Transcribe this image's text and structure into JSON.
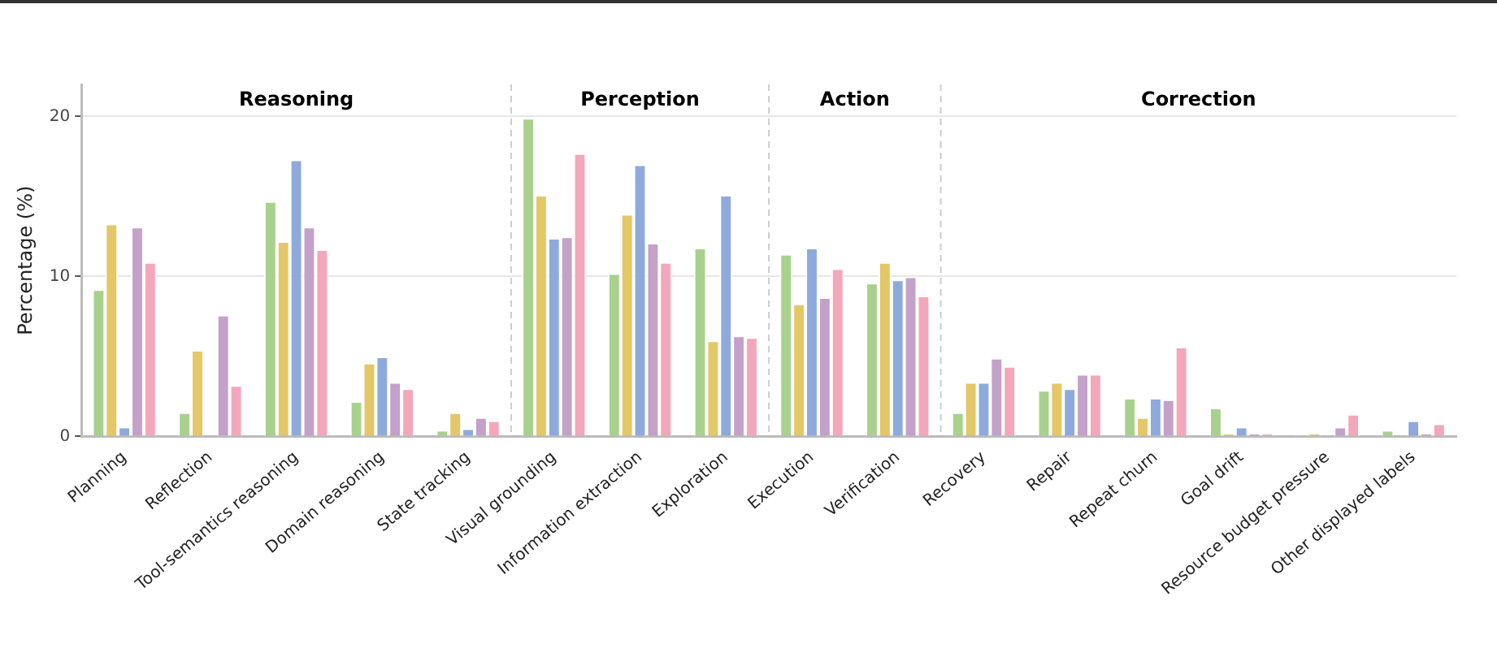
{
  "chart_data": {
    "type": "bar",
    "ylabel": "Percentage (%)",
    "categories": [
      "Planning",
      "Reflection",
      "Tool-semantics reasoning",
      "Domain reasoning",
      "State tracking",
      "Visual grounding",
      "Information extraction",
      "Exploration",
      "Execution",
      "Verification",
      "Recovery",
      "Repair",
      "Repeat churn",
      "Goal drift",
      "Resource budget pressure",
      "Other displayed labels"
    ],
    "series": [
      {
        "color": "#a8d18d",
        "values": [
          9.2,
          1.5,
          14.7,
          2.2,
          0.4,
          19.9,
          10.2,
          11.8,
          11.4,
          9.6,
          1.5,
          2.9,
          2.4,
          1.8,
          0.1,
          0.4
        ]
      },
      {
        "color": "#e4c766",
        "values": [
          13.3,
          5.4,
          12.2,
          4.6,
          1.5,
          15.1,
          13.9,
          6.0,
          8.3,
          10.9,
          3.4,
          3.4,
          1.2,
          0.2,
          0.2,
          0.0
        ]
      },
      {
        "color": "#8eaadc",
        "values": [
          0.6,
          0.0,
          17.3,
          5.0,
          0.5,
          12.4,
          17.0,
          15.1,
          11.8,
          9.8,
          3.4,
          3.0,
          2.4,
          0.6,
          0.0,
          1.0
        ]
      },
      {
        "color": "#c3a1c9",
        "values": [
          13.1,
          7.6,
          13.1,
          3.4,
          1.2,
          12.5,
          12.1,
          6.3,
          8.7,
          10.0,
          4.9,
          3.9,
          2.3,
          0.2,
          0.6,
          0.2
        ]
      },
      {
        "color": "#f4a7ba",
        "values": [
          10.9,
          3.2,
          11.7,
          3.0,
          1.0,
          17.7,
          10.9,
          6.2,
          10.5,
          8.8,
          4.4,
          3.9,
          5.6,
          0.2,
          1.4,
          0.8
        ]
      }
    ],
    "ylim": [
      0,
      22
    ],
    "yticks": [
      0,
      10,
      20
    ],
    "grid": "y",
    "legend": false,
    "annotations": [
      "Reasoning",
      "Perception",
      "Action",
      "Correction"
    ]
  }
}
